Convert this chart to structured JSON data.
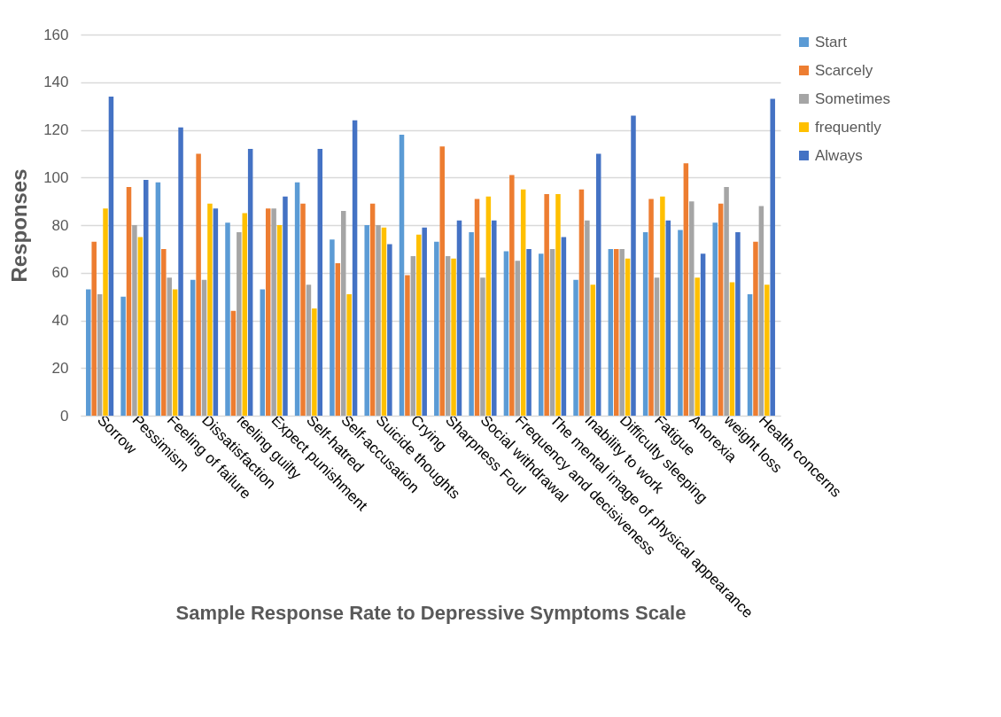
{
  "chart_data": {
    "type": "bar",
    "xlabel": "Sample Response Rate to Depressive Symptoms Scale",
    "ylabel": "Responses",
    "categories": [
      "Sorrow",
      "Pessimism",
      "Feeling of failure",
      "Dissatisfaction",
      "feeling guilty",
      "Expect punishment",
      "Self-hatred",
      "Self-accusation",
      "Suicide thoughts",
      "Crying",
      "Sharpness Foul",
      "Social withdrawal",
      "Frequency and decisiveness",
      "The mental image of physical appearance",
      "Inability to work",
      "Difficulty sleeping",
      "Fatigue",
      "Anorexia",
      "weight loss",
      "Health concerns"
    ],
    "series": [
      {
        "name": "Start",
        "color": "#5b9bd5",
        "values": [
          53,
          50,
          98,
          57,
          81,
          53,
          98,
          74,
          80,
          118,
          73,
          77,
          69,
          68,
          57,
          70,
          77,
          78,
          81,
          51
        ]
      },
      {
        "name": "Scarcely",
        "color": "#ed7d31",
        "values": [
          73,
          96,
          70,
          110,
          44,
          87,
          89,
          64,
          89,
          59,
          113,
          91,
          101,
          93,
          95,
          70,
          91,
          106,
          89,
          73
        ]
      },
      {
        "name": "Sometimes",
        "color": "#a5a5a5",
        "values": [
          51,
          80,
          58,
          57,
          77,
          87,
          55,
          86,
          80,
          67,
          67,
          58,
          65,
          70,
          82,
          70,
          58,
          90,
          96,
          88
        ]
      },
      {
        "name": "frequently",
        "color": "#ffc000",
        "values": [
          87,
          75,
          53,
          89,
          85,
          80,
          45,
          51,
          79,
          76,
          66,
          92,
          95,
          93,
          55,
          66,
          92,
          58,
          56,
          55
        ]
      },
      {
        "name": "Always",
        "color": "#4472c4",
        "values": [
          134,
          99,
          121,
          87,
          112,
          92,
          112,
          124,
          72,
          79,
          82,
          82,
          70,
          75,
          110,
          126,
          82,
          68,
          77,
          133
        ]
      }
    ],
    "ylim": [
      0,
      160
    ],
    "yticks": [
      0,
      20,
      40,
      60,
      80,
      100,
      120,
      140,
      160
    ],
    "grid": "y",
    "legend": "right"
  }
}
